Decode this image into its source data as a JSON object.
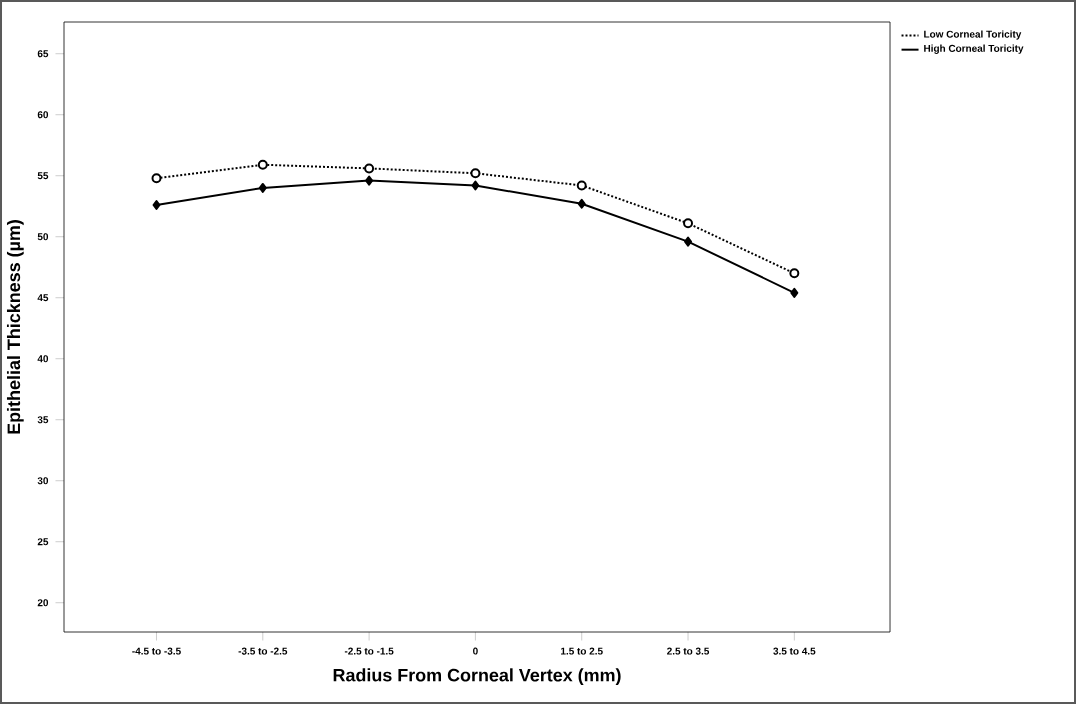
{
  "chart_data": {
    "type": "line",
    "xlabel": "Radius From Corneal Vertex (mm)",
    "ylabel": "Epithelial Thickness (µm)",
    "categories": [
      "-4.5 to -3.5",
      "-3.5 to -2.5",
      "-2.5 to -1.5",
      "0",
      "1.5 to 2.5",
      "2.5 to 3.5",
      "3.5 to 4.5"
    ],
    "series": [
      {
        "name": "Low Corneal Toricity",
        "color": "#000000",
        "marker": "circle",
        "line_style": "dotted",
        "values": [
          54.8,
          55.9,
          55.6,
          55.2,
          54.2,
          51.1,
          47.0
        ]
      },
      {
        "name": "High Corneal Toricity",
        "color": "#000000",
        "marker": "diamond",
        "line_style": "solid",
        "values": [
          52.6,
          54.0,
          54.6,
          54.2,
          52.7,
          49.6,
          45.4
        ]
      }
    ],
    "ylim": [
      17.6,
      67.6
    ],
    "yticks": [
      20,
      25,
      30,
      35,
      40,
      45,
      50,
      55,
      60,
      65
    ],
    "grid": false,
    "legend": "top right"
  }
}
